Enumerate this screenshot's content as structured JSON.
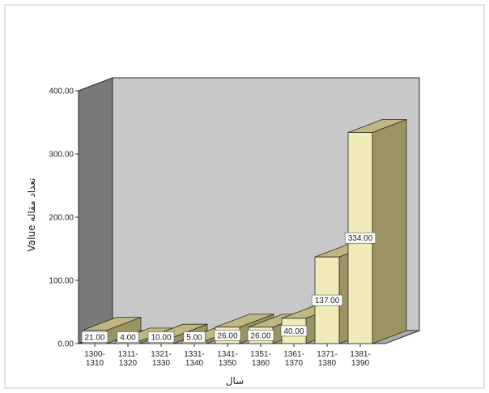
{
  "chart_data": {
    "type": "bar",
    "style": "3d",
    "categories": [
      "1300-1310",
      "1311-1320",
      "1321-1330",
      "1331-1340",
      "1341-1350",
      "1351-1360",
      "1361-1370",
      "1371-1380",
      "1381-1390"
    ],
    "category_lines": [
      [
        "1300-",
        "1310"
      ],
      [
        "1311-",
        "1320"
      ],
      [
        "1321-",
        "1330"
      ],
      [
        "1331-",
        "1340"
      ],
      [
        "1341-",
        "1350"
      ],
      [
        "1351-",
        "1360"
      ],
      [
        "1361-",
        "1370"
      ],
      [
        "1371-",
        "1380"
      ],
      [
        "1381-",
        "1390"
      ]
    ],
    "values": [
      21.0,
      4.0,
      10.0,
      5.0,
      26.0,
      26.0,
      40.0,
      137.0,
      334.0
    ],
    "value_labels": [
      "21.00",
      "4.00",
      "10.00",
      "5.00",
      "26.00",
      "26.00",
      "40.00",
      "137.00",
      "334.00"
    ],
    "yticks": [
      "0.00",
      "100.00",
      "200.00",
      "300.00",
      "400.00"
    ],
    "ylim": [
      0,
      400
    ],
    "ylabel": "Value تعداد مقاله",
    "xlabel": "سال",
    "colors": {
      "bar_front": "#f0ebb8",
      "bar_side": "#9b9462",
      "bar_top": "#bfb77f",
      "back_wall": "#c8c8c8",
      "left_wall": "#7a7a7a",
      "floor": "#ababab",
      "edge": "#2b2b2b"
    }
  }
}
